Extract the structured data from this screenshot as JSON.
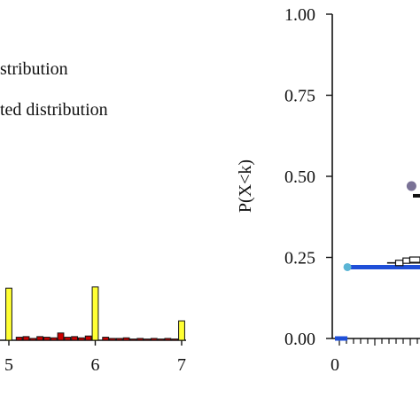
{
  "chart_data": [
    {
      "type": "bar",
      "title": "",
      "xlabel": "",
      "ylabel": "",
      "legend": [
        "stribution",
        "ted distribution"
      ],
      "x_ticks": [
        {
          "label": "5",
          "value": 5
        },
        {
          "label": "6",
          "value": 6
        },
        {
          "label": "7",
          "value": 7
        }
      ],
      "xlim": [
        4.96,
        7.05
      ],
      "ylim": [
        0,
        1
      ],
      "bar_width": 0.07,
      "series": [
        {
          "fill": "#ffff33",
          "bars": [
            {
              "x": 5.0,
              "y": 0.86
            },
            {
              "x": 6.0,
              "y": 0.88
            },
            {
              "x": 7.0,
              "y": 0.32
            }
          ]
        },
        {
          "fill": "#cc0000",
          "bars": [
            {
              "x": 5.12,
              "y": 0.05
            },
            {
              "x": 5.2,
              "y": 0.06
            },
            {
              "x": 5.28,
              "y": 0.03
            },
            {
              "x": 5.36,
              "y": 0.06
            },
            {
              "x": 5.44,
              "y": 0.05
            },
            {
              "x": 5.52,
              "y": 0.04
            },
            {
              "x": 5.6,
              "y": 0.12
            },
            {
              "x": 5.68,
              "y": 0.05
            },
            {
              "x": 5.76,
              "y": 0.06
            },
            {
              "x": 5.84,
              "y": 0.04
            },
            {
              "x": 5.92,
              "y": 0.07
            },
            {
              "x": 6.12,
              "y": 0.05
            },
            {
              "x": 6.2,
              "y": 0.03
            },
            {
              "x": 6.28,
              "y": 0.03
            },
            {
              "x": 6.36,
              "y": 0.04
            },
            {
              "x": 6.44,
              "y": 0.02
            },
            {
              "x": 6.52,
              "y": 0.03
            },
            {
              "x": 6.6,
              "y": 0.02
            },
            {
              "x": 6.68,
              "y": 0.03
            },
            {
              "x": 6.76,
              "y": 0.02
            },
            {
              "x": 6.84,
              "y": 0.03
            },
            {
              "x": 6.92,
              "y": 0.02
            }
          ]
        }
      ]
    },
    {
      "type": "line",
      "title": "",
      "xlabel": "",
      "ylabel": "P(X<k)",
      "ylim": [
        0,
        1
      ],
      "xlim": [
        0,
        1.5
      ],
      "y_ticks": [
        "0.00",
        "0.25",
        "0.50",
        "0.75",
        "1.00"
      ],
      "x_ticks": [
        {
          "label": "0",
          "value": 0
        }
      ],
      "series": [
        {
          "color": "#1f4fd8",
          "points": [
            {
              "x": 0.0,
              "y": 0.0
            },
            {
              "x": 0.22,
              "y": 0.0
            }
          ]
        },
        {
          "color": "#1f4fd8",
          "points": [
            {
              "x": 0.22,
              "y": 0.22
            },
            {
              "x": 1.5,
              "y": 0.22
            }
          ]
        },
        {
          "color": "#111111",
          "points": [
            {
              "x": 0.92,
              "y": 0.233
            },
            {
              "x": 1.5,
              "y": 0.233
            }
          ]
        },
        {
          "color": "#111111",
          "points": [
            {
              "x": 1.2,
              "y": 0.24
            },
            {
              "x": 1.5,
              "y": 0.24
            }
          ]
        },
        {
          "color": "#111111",
          "points": [
            {
              "x": 1.5,
              "y": 0.44
            }
          ]
        }
      ],
      "markers": [
        {
          "x": 0.22,
          "y": 0.22,
          "color": "#5bb5d5",
          "r": 4.5
        },
        {
          "x": 1.35,
          "y": 0.47,
          "color": "#7a7296",
          "r": 5.5
        }
      ],
      "step_segments": [
        {
          "x1": 1.07,
          "x2": 1.2,
          "y": 0.233
        },
        {
          "x1": 1.2,
          "x2": 1.32,
          "y": 0.24
        },
        {
          "x1": 1.32,
          "x2": 1.5,
          "y": 0.243
        }
      ]
    }
  ]
}
